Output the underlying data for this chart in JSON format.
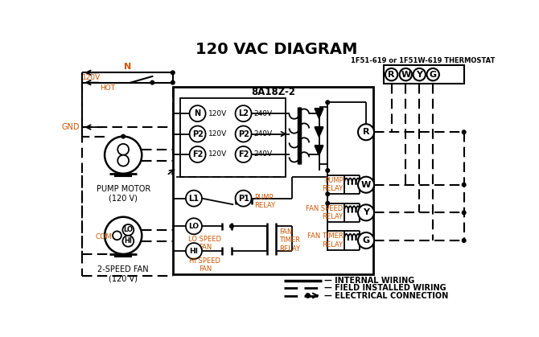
{
  "title": "120 VAC DIAGRAM",
  "title_fontsize": 14,
  "title_fontweight": "bold",
  "bg_color": "#ffffff",
  "line_color": "#000000",
  "orange_color": "#cc5500",
  "thermostat_label": "1F51-619 or 1F51W-619 THERMOSTAT",
  "module_label": "8A18Z-2",
  "thermostat_terminals": [
    "R",
    "W",
    "Y",
    "G"
  ],
  "legend_items": [
    "INTERNAL WIRING",
    "FIELD INSTALLED WIRING",
    "ELECTRICAL CONNECTION"
  ],
  "pump_motor_label": "PUMP MOTOR\n(120 V)",
  "fan_label": "2-SPEED FAN\n(120 V)",
  "pump_relay_label": "PUMP\nRELAY",
  "fan_speed_relay_label": "FAN SPEED\nRELAY",
  "fan_timer_relay_label": "FAN TIMER\nRELAY",
  "lo_speed_fan_label": "LO SPEED\nFAN",
  "hi_speed_fan_label": "HI SPEED\nFAN",
  "fan_timer_relay_sw_label": "FAN\nTIMER\nRELAY",
  "pump_relay_sw_label": "PUMP\nRELAY"
}
